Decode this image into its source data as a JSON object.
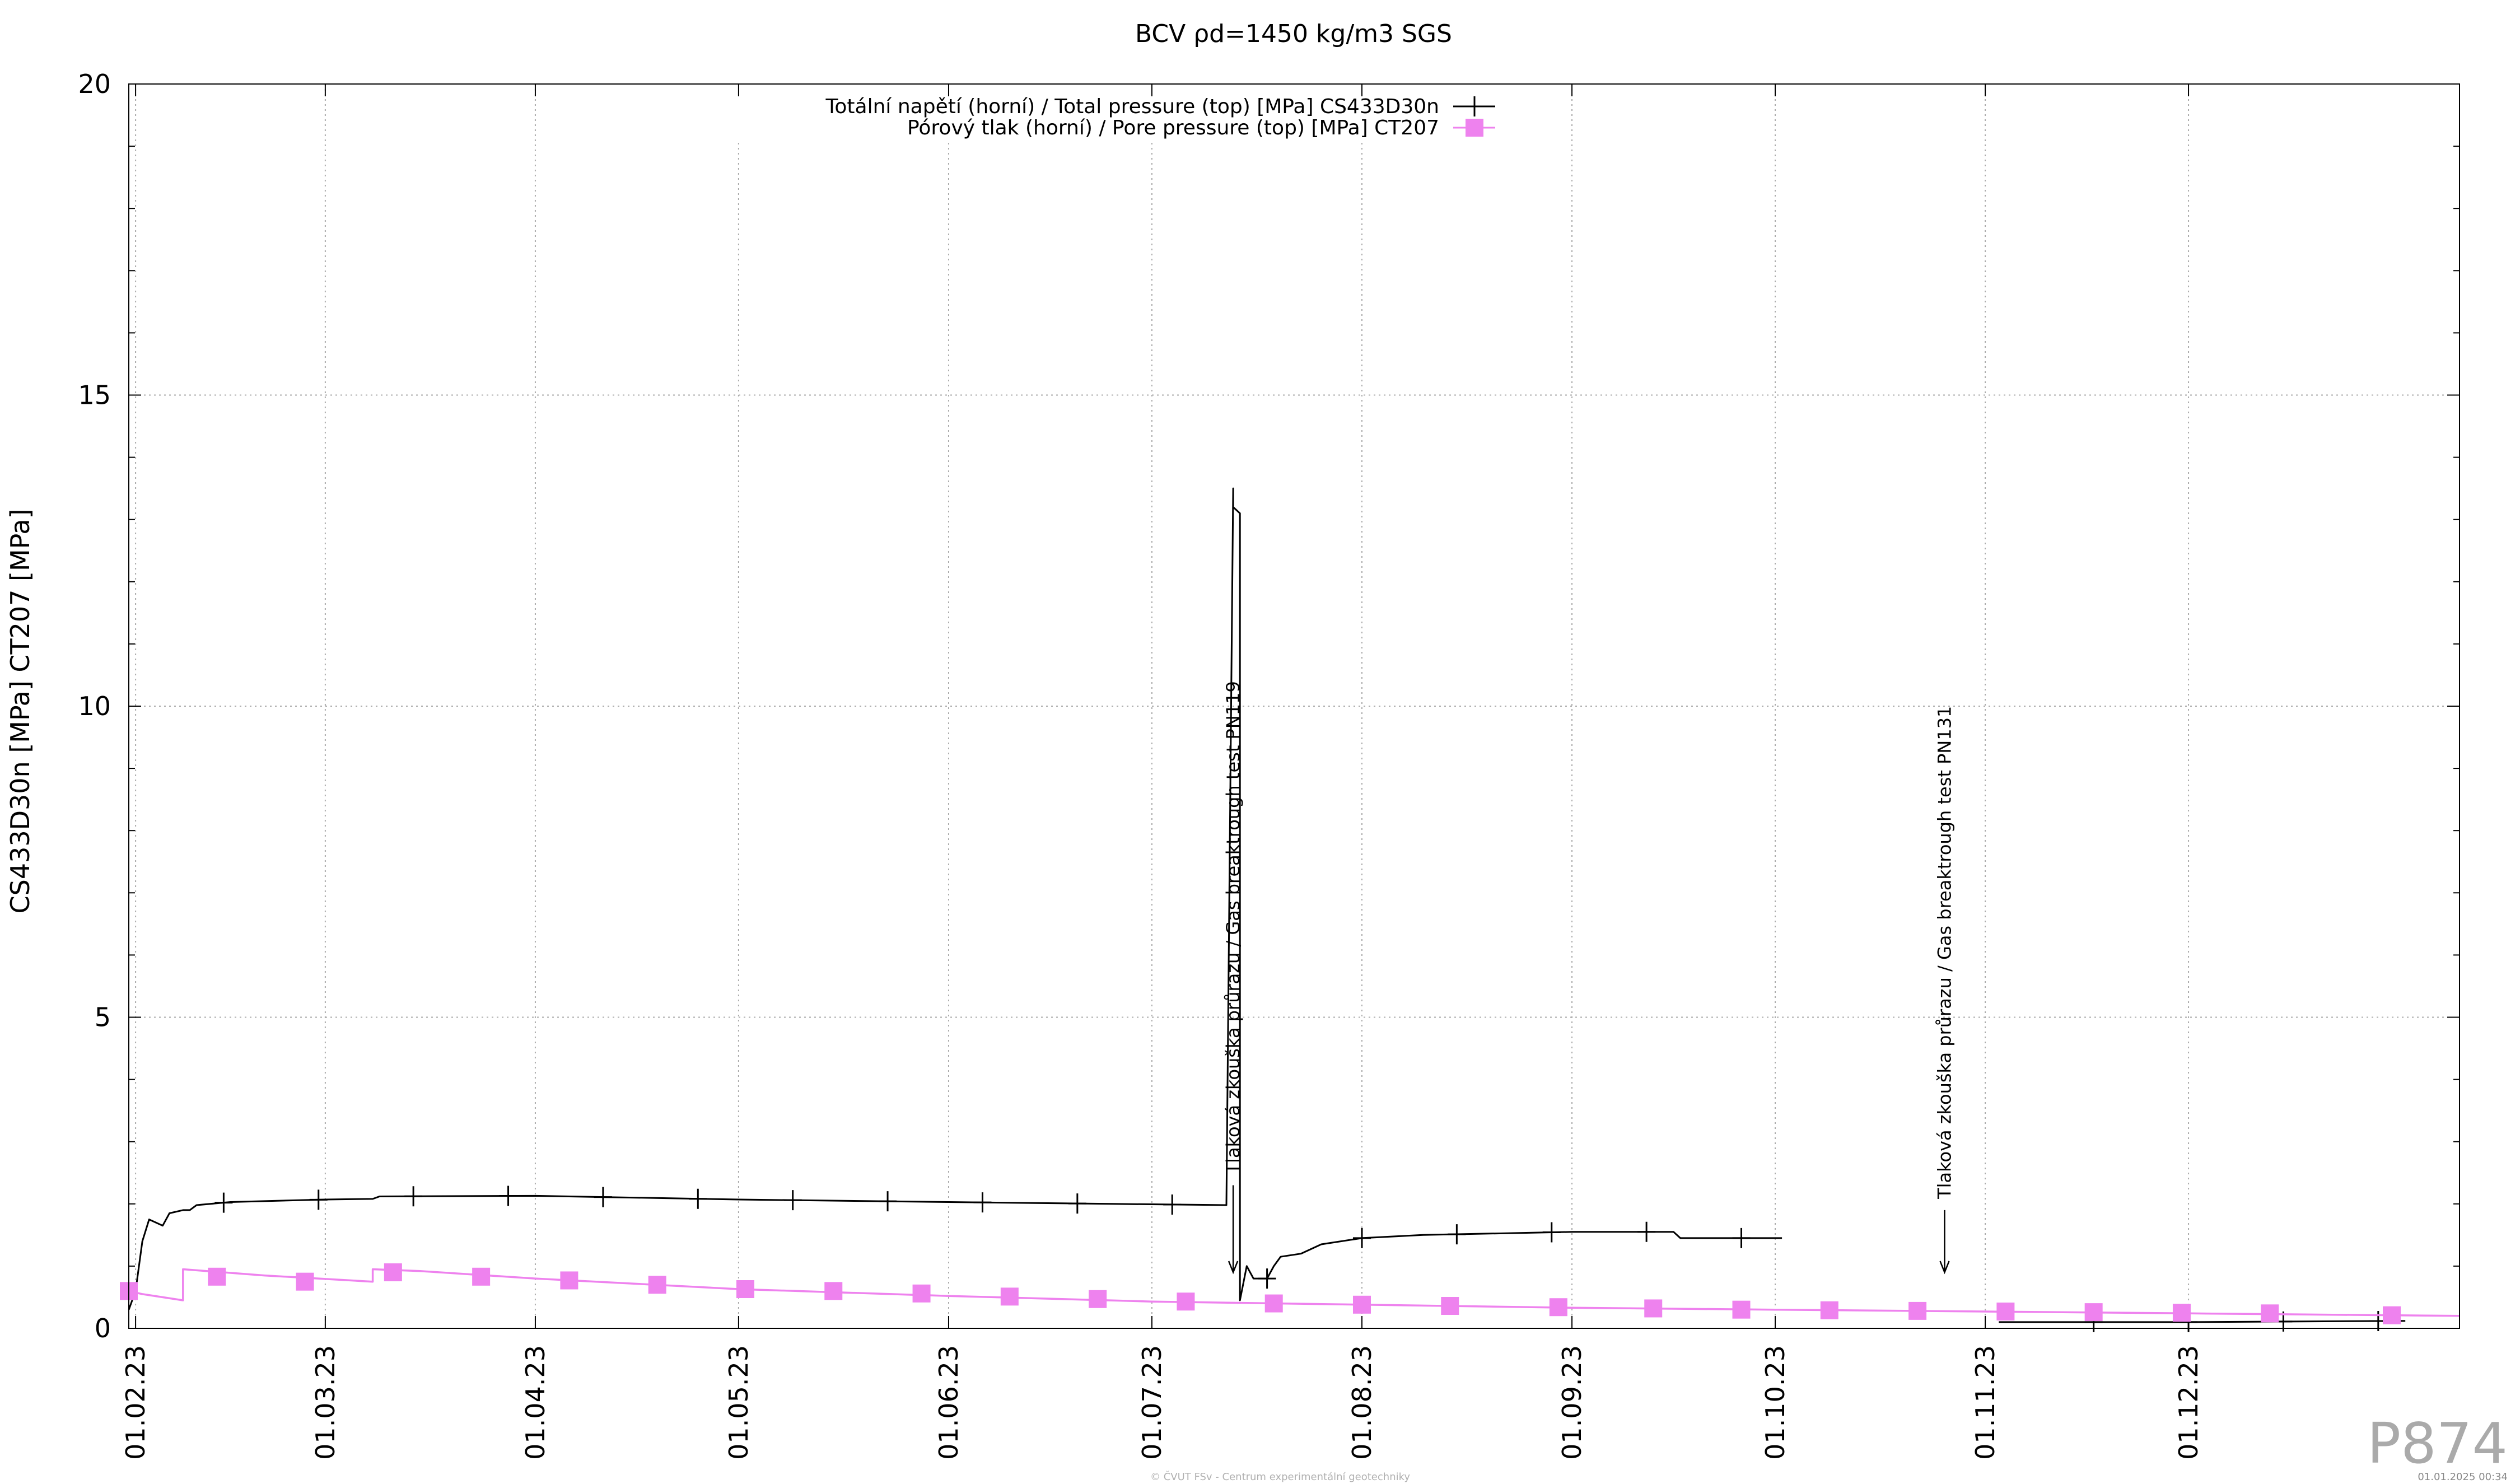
{
  "chart_data": {
    "type": "line",
    "title": "BCV ρd=1450 kg/m3 SGS",
    "ylabel": "CS433D30n [MPa] CT207 [MPa]",
    "xlabel": "",
    "ylim": [
      0,
      20
    ],
    "yticks": [
      0,
      5,
      10,
      15,
      20
    ],
    "xlim": [
      "2023-01-31",
      "2024-01-10"
    ],
    "xticks": [
      {
        "date": "2023-02-01",
        "label": "01.02.23"
      },
      {
        "date": "2023-03-01",
        "label": "01.03.23"
      },
      {
        "date": "2023-04-01",
        "label": "01.04.23"
      },
      {
        "date": "2023-05-01",
        "label": "01.05.23"
      },
      {
        "date": "2023-06-01",
        "label": "01.06.23"
      },
      {
        "date": "2023-07-01",
        "label": "01.07.23"
      },
      {
        "date": "2023-08-01",
        "label": "01.08.23"
      },
      {
        "date": "2023-09-01",
        "label": "01.09.23"
      },
      {
        "date": "2023-10-01",
        "label": "01.10.23"
      },
      {
        "date": "2023-11-01",
        "label": "01.11.23"
      },
      {
        "date": "2023-12-01",
        "label": "01.12.23"
      }
    ],
    "grid": true,
    "legend_position": "top-center",
    "series": [
      {
        "name": "Totální napětí (horní) / Total pressure (top) [MPa] CS433D30n",
        "color": "#000000",
        "marker": "plus",
        "segments": [
          [
            [
              "2023-01-31",
              0.3
            ],
            [
              "2023-02-01",
              0.6
            ],
            [
              "2023-02-02",
              1.4
            ],
            [
              "2023-02-03",
              1.75
            ],
            [
              "2023-02-04",
              1.7
            ],
            [
              "2023-02-05",
              1.65
            ],
            [
              "2023-02-06",
              1.85
            ],
            [
              "2023-02-08",
              1.9
            ],
            [
              "2023-02-09",
              1.9
            ],
            [
              "2023-02-10",
              1.98
            ],
            [
              "2023-02-15",
              2.03
            ],
            [
              "2023-03-01",
              2.07
            ],
            [
              "2023-03-08",
              2.08
            ],
            [
              "2023-03-09",
              2.12
            ],
            [
              "2023-04-01",
              2.13
            ],
            [
              "2023-05-01",
              2.07
            ],
            [
              "2023-06-01",
              2.03
            ],
            [
              "2023-06-25",
              2.0
            ],
            [
              "2023-07-12",
              1.98
            ],
            [
              "2023-07-13",
              13.5
            ],
            [
              "2023-07-13",
              13.2
            ],
            [
              "2023-07-14",
              13.1
            ],
            [
              "2023-07-14",
              0.45
            ],
            [
              "2023-07-15",
              1.0
            ],
            [
              "2023-07-16",
              0.8
            ],
            [
              "2023-07-18",
              0.8
            ],
            [
              "2023-07-19",
              1.0
            ],
            [
              "2023-07-20",
              1.15
            ],
            [
              "2023-07-23",
              1.2
            ],
            [
              "2023-07-26",
              1.35
            ],
            [
              "2023-08-01",
              1.45
            ],
            [
              "2023-08-10",
              1.5
            ],
            [
              "2023-09-01",
              1.55
            ],
            [
              "2023-09-16",
              1.55
            ],
            [
              "2023-09-17",
              1.45
            ],
            [
              "2023-10-02",
              1.45
            ]
          ],
          [
            [
              "2023-11-03",
              0.1
            ],
            [
              "2023-12-01",
              0.1
            ],
            [
              "2024-01-02",
              0.12
            ]
          ]
        ]
      },
      {
        "name": "Pórový tlak (horní) / Pore pressure (top) [MPa] CT207",
        "color": "#ee82ee",
        "marker": "square",
        "segments": [
          [
            [
              "2023-01-31",
              0.6
            ],
            [
              "2023-02-02",
              0.55
            ],
            [
              "2023-02-08",
              0.45
            ],
            [
              "2023-02-08",
              0.95
            ],
            [
              "2023-02-20",
              0.85
            ],
            [
              "2023-03-08",
              0.75
            ],
            [
              "2023-03-08",
              0.95
            ],
            [
              "2023-03-15",
              0.92
            ],
            [
              "2023-04-01",
              0.8
            ],
            [
              "2023-05-01",
              0.63
            ],
            [
              "2023-06-01",
              0.52
            ],
            [
              "2023-07-01",
              0.43
            ],
            [
              "2023-08-01",
              0.38
            ],
            [
              "2023-09-01",
              0.33
            ],
            [
              "2023-10-01",
              0.3
            ],
            [
              "2023-11-01",
              0.27
            ],
            [
              "2023-12-01",
              0.24
            ],
            [
              "2024-01-10",
              0.2
            ]
          ]
        ],
        "markers": [
          [
            "2023-01-31",
            0.6
          ],
          [
            "2023-02-13",
            0.83
          ],
          [
            "2023-02-26",
            0.75
          ],
          [
            "2023-03-11",
            0.9
          ],
          [
            "2023-03-24",
            0.83
          ],
          [
            "2023-04-06",
            0.77
          ],
          [
            "2023-04-19",
            0.7
          ],
          [
            "2023-05-02",
            0.63
          ],
          [
            "2023-05-15",
            0.6
          ],
          [
            "2023-05-28",
            0.56
          ],
          [
            "2023-06-10",
            0.51
          ],
          [
            "2023-06-23",
            0.47
          ],
          [
            "2023-07-06",
            0.43
          ],
          [
            "2023-07-19",
            0.4
          ],
          [
            "2023-08-01",
            0.38
          ],
          [
            "2023-08-14",
            0.36
          ],
          [
            "2023-08-30",
            0.34
          ],
          [
            "2023-09-13",
            0.32
          ],
          [
            "2023-09-26",
            0.3
          ],
          [
            "2023-10-09",
            0.29
          ],
          [
            "2023-10-22",
            0.28
          ],
          [
            "2023-11-04",
            0.27
          ],
          [
            "2023-11-17",
            0.26
          ],
          [
            "2023-11-30",
            0.25
          ],
          [
            "2023-12-13",
            0.24
          ],
          [
            "2023-12-31",
            0.21
          ]
        ]
      }
    ],
    "annotations": [
      {
        "date": "2023-07-13",
        "text": "Tlaková zkouška průrazu / Gas breaktrough test PN119",
        "arrow_from": 2.3,
        "arrow_to": 0.9
      },
      {
        "date": "2023-10-26",
        "text": "Tlaková zkouška průrazu / Gas breaktrough test PN131",
        "arrow_from": 1.9,
        "arrow_to": 0.9
      }
    ]
  },
  "watermark": {
    "id": "P874",
    "footer_center": "© ČVUT FSv - Centrum experimentální geotechniky",
    "footer_right": "01.01.2025 00:34"
  }
}
